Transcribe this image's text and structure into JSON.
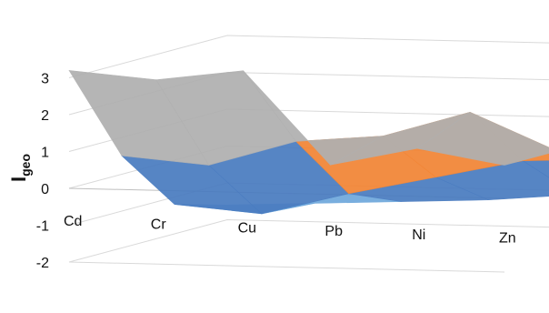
{
  "chart_data": {
    "type": "surface",
    "title": "",
    "ylabel": "I",
    "ylabel_sub": "geo",
    "categories": [
      "Cd",
      "Cr",
      "Cu",
      "Pb",
      "Ni",
      "Zn"
    ],
    "zlim": [
      -2,
      3
    ],
    "ticks": [
      "3",
      "2",
      "1",
      "0",
      "-1",
      "-2"
    ],
    "tick_values": [
      3,
      2,
      1,
      0,
      -1,
      -2
    ],
    "band_colors": {
      "below_-1": "#6fa8dc",
      "-1_to_0": "#4a7cc0",
      "0_to_1": "#f28535",
      "1_to_2": "#b0b0b0",
      "2_to_3": "#f5d000",
      "above_3": "#4472c4"
    },
    "series": [
      {
        "values": [
          3.2,
          3.0,
          3.3,
          0.8,
          1.3,
          0.9
        ]
      },
      {
        "values": [
          0.5,
          0.3,
          1.0,
          1.2,
          1.9,
          0.9
        ]
      },
      {
        "values": [
          -1.2,
          -1.4,
          -0.8,
          -0.3,
          0.2,
          0.3
        ]
      },
      {
        "values": [
          -1.6,
          -1.5,
          -1.4,
          -1.3,
          -1.1,
          -1.0
        ]
      }
    ],
    "grid": true
  }
}
